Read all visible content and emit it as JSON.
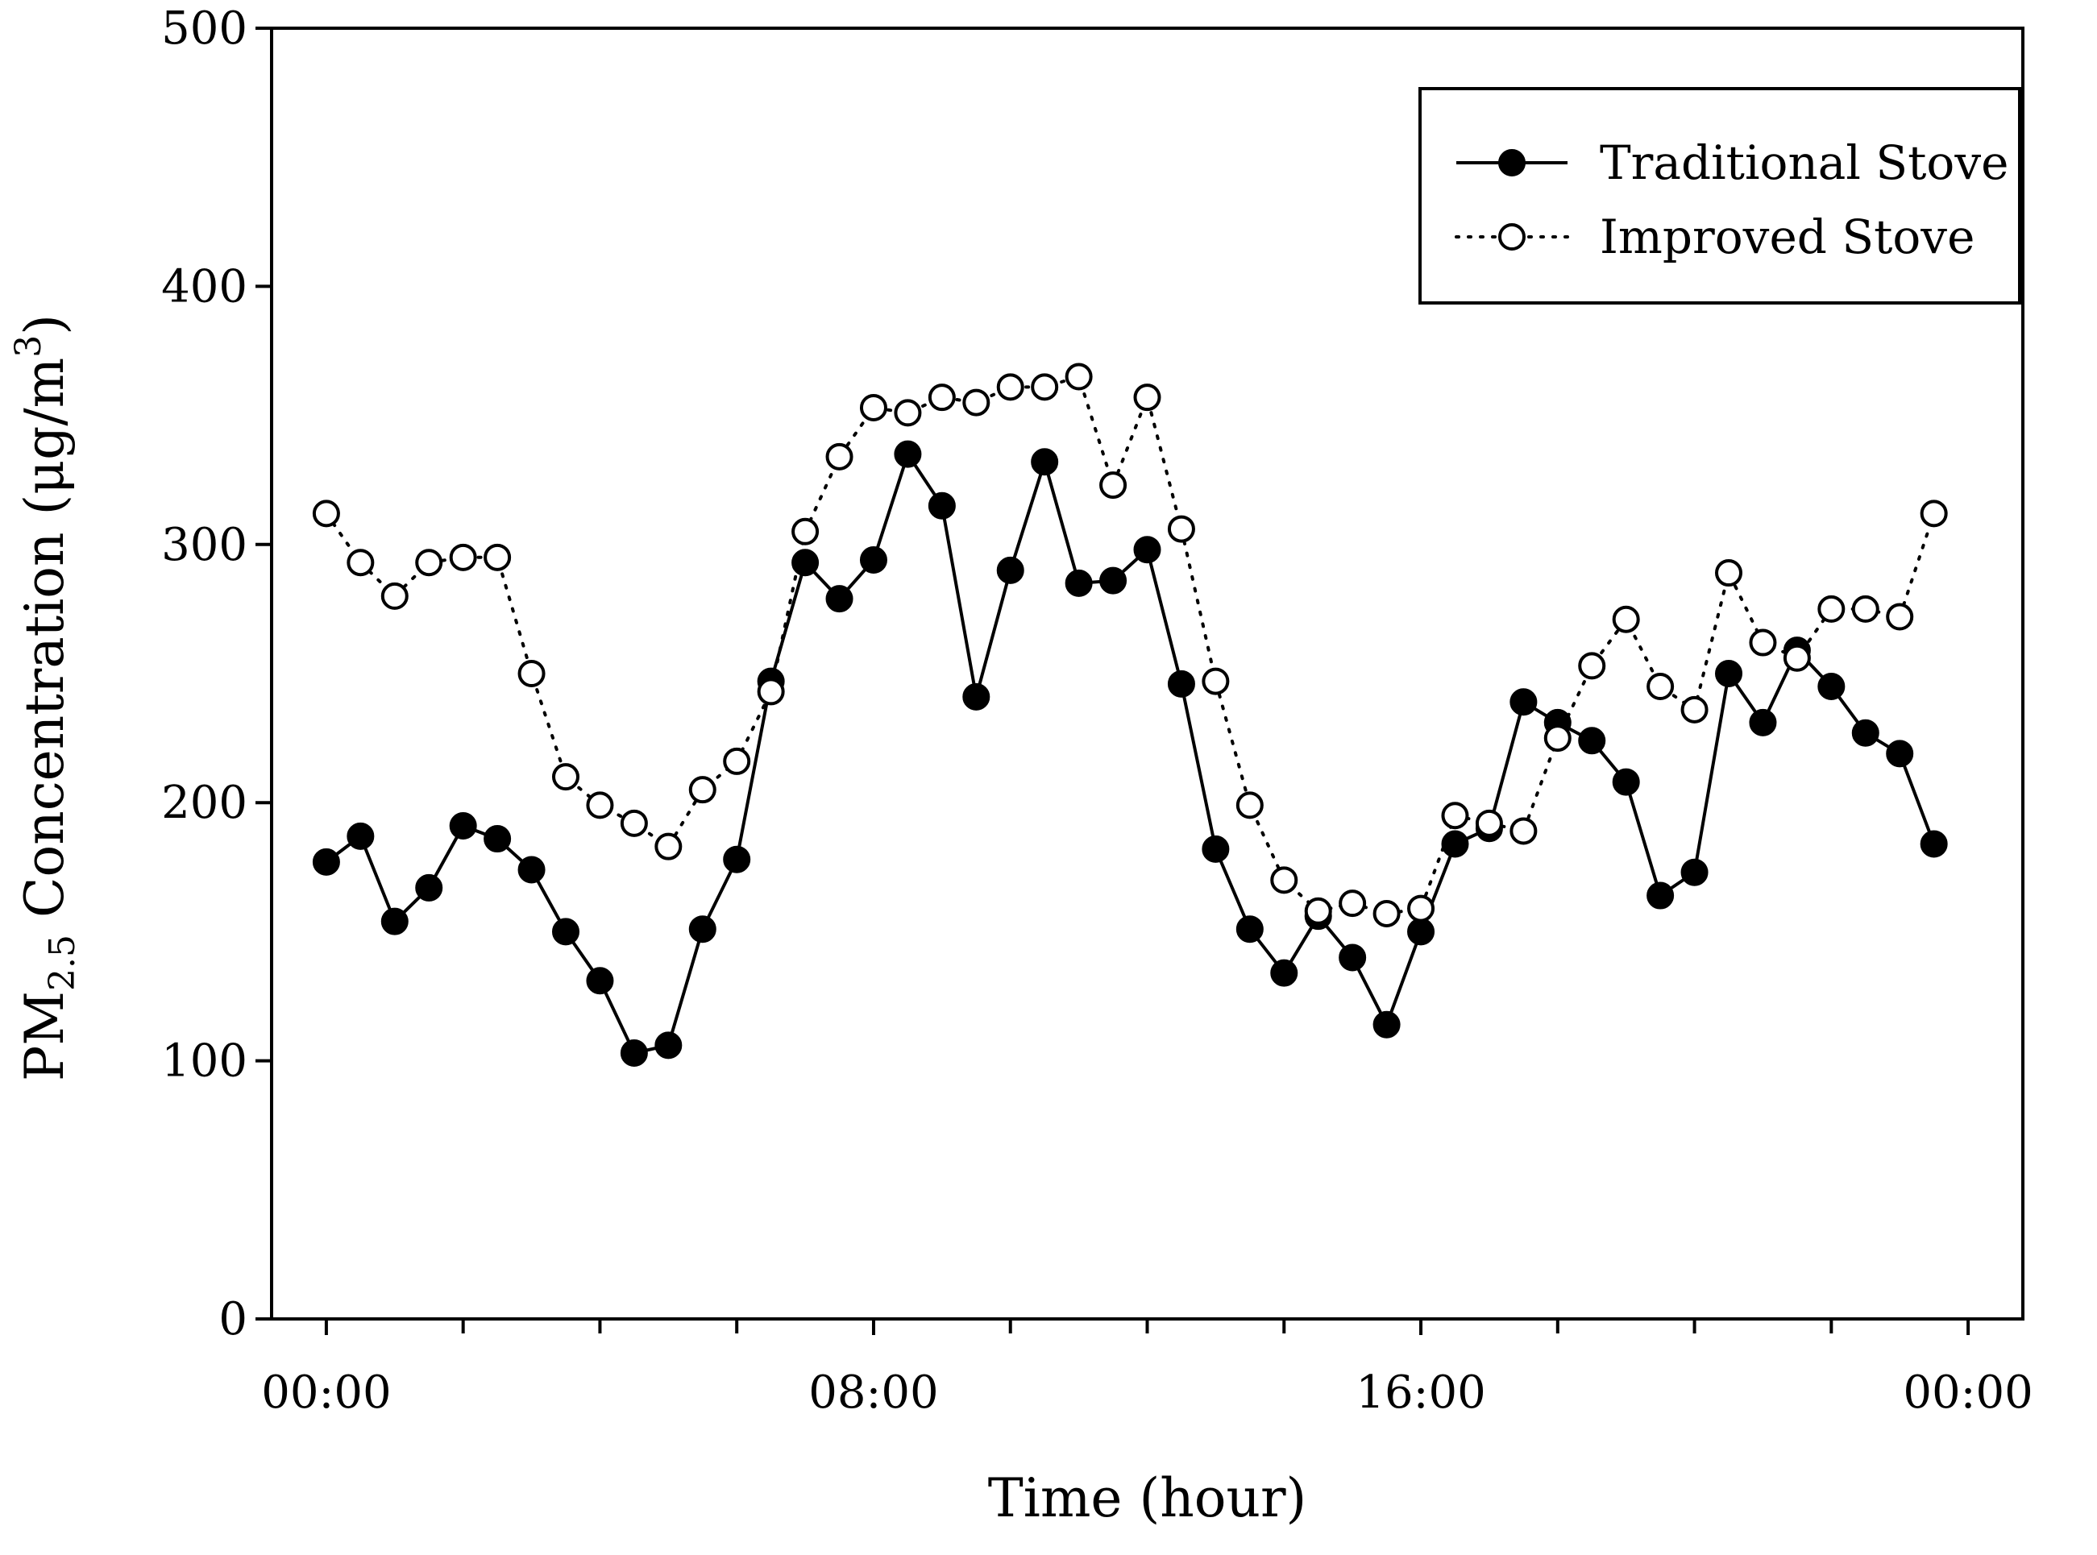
{
  "chart_data": {
    "type": "line",
    "title": "",
    "xlabel": "Time (hour)",
    "ylabel": {
      "prefix": "PM",
      "subscript": "2.5",
      "middle": " Concentration (μg/m",
      "superscript": "3",
      "suffix": ")"
    },
    "xlim": [
      -0.8,
      24.8
    ],
    "ylim": [
      0,
      500
    ],
    "x_ticks": [
      0,
      8,
      16,
      24
    ],
    "x_tick_labels": [
      "00:00",
      "08:00",
      "16:00",
      "00:00"
    ],
    "x_minor_ticks": [
      2,
      4,
      6,
      10,
      12,
      14,
      18,
      20,
      22
    ],
    "y_ticks": [
      0,
      100,
      200,
      300,
      400,
      500
    ],
    "y_tick_labels": [
      "0",
      "100",
      "200",
      "300",
      "400",
      "500"
    ],
    "grid": false,
    "legend_position": "top-right",
    "x": [
      0,
      0.5,
      1,
      1.5,
      2,
      2.5,
      3,
      3.5,
      4,
      4.5,
      5,
      5.5,
      6,
      6.5,
      7,
      7.5,
      8,
      8.5,
      9,
      9.5,
      10,
      10.5,
      11,
      11.5,
      12,
      12.5,
      13,
      13.5,
      14,
      14.5,
      15,
      15.5,
      16,
      16.5,
      17,
      17.5,
      18,
      18.5,
      19,
      19.5,
      20,
      20.5,
      21,
      21.5,
      22,
      22.5,
      23,
      23.5
    ],
    "series": [
      {
        "name": "Traditional Stove",
        "marker": "filled-circle",
        "line": "solid",
        "values": [
          177,
          187,
          154,
          167,
          191,
          186,
          174,
          150,
          131,
          103,
          106,
          151,
          178,
          247,
          293,
          279,
          294,
          335,
          315,
          241,
          290,
          332,
          285,
          286,
          298,
          246,
          182,
          151,
          134,
          156,
          140,
          114,
          150,
          184,
          190,
          239,
          231,
          224,
          208,
          164,
          173,
          250,
          231,
          259,
          245,
          227,
          219,
          184
        ]
      },
      {
        "name": "Improved Stove",
        "marker": "open-circle",
        "line": "dotted",
        "values": [
          312,
          293,
          280,
          293,
          295,
          295,
          250,
          210,
          199,
          192,
          183,
          205,
          216,
          243,
          305,
          334,
          353,
          351,
          357,
          355,
          361,
          361,
          365,
          323,
          357,
          306,
          247,
          199,
          170,
          158,
          161,
          157,
          159,
          195,
          192,
          189,
          225,
          253,
          271,
          245,
          236,
          289,
          262,
          256,
          275,
          275,
          272,
          312
        ]
      }
    ]
  }
}
